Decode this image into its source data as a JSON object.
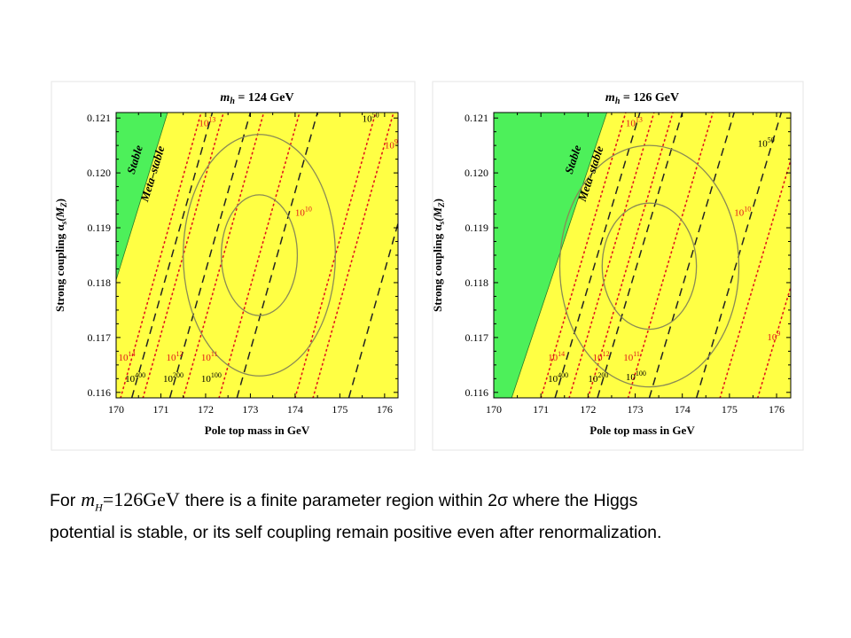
{
  "caption": {
    "prefix": "For",
    "math_symbol": "m",
    "math_subscript": "H",
    "math_value": "=126GeV",
    "line1_rest": "there is a finite parameter region within 2σ where the Higgs",
    "line2": "potential is stable, or its self coupling remain positive even after renormalization."
  },
  "colors": {
    "stable": "#4df05a",
    "metastable": "#ffff44",
    "contour_black": "#222222",
    "contour_red": "#e0161c",
    "ellipse": "#8a8a55"
  },
  "chart_data": [
    {
      "type": "contour",
      "title": "m_h = 124 GeV",
      "title_text": {
        "prefix": "m",
        "sub": "h",
        "rest": " = 124 GeV"
      },
      "xlabel": "Pole top mass in GeV",
      "ylabel": "Strong coupling α_s(M_Z)",
      "ylabel_text": {
        "prefix": "Strong coupling α",
        "sub": "s",
        "rest": "(M",
        "sub2": "Z",
        "end": ")"
      },
      "xlim": [
        170,
        176.3
      ],
      "ylim": [
        0.1159,
        0.1211
      ],
      "xticks": [
        "170",
        "171",
        "172",
        "173",
        "174",
        "175",
        "176"
      ],
      "yticks": [
        "0.116",
        "0.117",
        "0.118",
        "0.119",
        "0.120",
        "0.121"
      ],
      "regions": [
        {
          "name": "Stable",
          "label": "Stable",
          "boundary": [
            [
              170.02,
              0.1181
            ],
            [
              171.15,
              0.1211
            ]
          ]
        },
        {
          "name": "Meta-stable",
          "label": "Meta–stable"
        }
      ],
      "contours_black": [
        {
          "label": "10400",
          "base": "10",
          "exp": "400",
          "x_bottom": 170.35,
          "x_top": 172.15
        },
        {
          "label": "10200",
          "base": "10",
          "exp": "200",
          "x_bottom": 171.2,
          "x_top": 173.0
        },
        {
          "label": "10100",
          "base": "10",
          "exp": "100",
          "x_bottom": 172.7,
          "x_top": 174.5
        },
        {
          "label": "1050",
          "base": "10",
          "exp": "50",
          "x_bottom": 175.2,
          "x_top": 177.0
        }
      ],
      "contours_red": [
        {
          "label": "1014",
          "base": "10",
          "exp": "14",
          "x_bottom": 170.1,
          "x_top": 171.9
        },
        {
          "label": "1012",
          "base": "10",
          "exp": "12",
          "x_bottom": 171.5,
          "x_top": 173.3
        },
        {
          "label": "1011",
          "base": "10",
          "exp": "11",
          "x_bottom": 172.3,
          "x_top": 174.1
        },
        {
          "label": "1013",
          "base": "10",
          "exp": "13",
          "x_bottom": 170.6,
          "x_top": 172.4
        },
        {
          "label": "1010",
          "base": "10",
          "exp": "10",
          "x_bottom": 174.0,
          "x_top": 175.8
        },
        {
          "label": "109",
          "base": "10",
          "exp": "9",
          "x_bottom": 174.4,
          "x_top": 176.2
        }
      ],
      "curve_labels": [
        {
          "exp": "14",
          "x": 170.05,
          "y": 0.11658,
          "color": "red"
        },
        {
          "exp": "12",
          "x": 171.12,
          "y": 0.11658,
          "color": "red"
        },
        {
          "exp": "11",
          "x": 171.9,
          "y": 0.11658,
          "color": "red"
        },
        {
          "exp": "400",
          "x": 170.2,
          "y": 0.11619,
          "color": "black"
        },
        {
          "exp": "200",
          "x": 171.05,
          "y": 0.11619,
          "color": "black"
        },
        {
          "exp": "100",
          "x": 171.9,
          "y": 0.11619,
          "color": "black"
        },
        {
          "exp": "13",
          "x": 171.85,
          "y": 0.12085,
          "color": "red"
        },
        {
          "exp": "10",
          "x": 174.0,
          "y": 0.11922,
          "color": "red"
        },
        {
          "exp": "50",
          "x": 175.5,
          "y": 0.12093,
          "color": "black"
        },
        {
          "exp": "9",
          "x": 176.0,
          "y": 0.12045,
          "color": "red"
        }
      ],
      "ellipses": [
        {
          "sigma": 1,
          "cx": 173.2,
          "cy": 0.1185,
          "rx": 0.85,
          "ry": 0.0011
        },
        {
          "sigma": 2,
          "cx": 173.2,
          "cy": 0.1185,
          "rx": 1.7,
          "ry": 0.0022
        }
      ],
      "grid": false
    },
    {
      "type": "contour",
      "title": "m_h = 126 GeV",
      "title_text": {
        "prefix": "m",
        "sub": "h",
        "rest": " = 126 GeV"
      },
      "xlabel": "Pole top mass in GeV",
      "ylabel": "Strong coupling α_s(M_Z)",
      "ylabel_text": {
        "prefix": "Strong coupling α",
        "sub": "s",
        "rest": "(M",
        "sub2": "Z",
        "end": ")"
      },
      "xlim": [
        170,
        176.3
      ],
      "ylim": [
        0.1159,
        0.1211
      ],
      "xticks": [
        "170",
        "171",
        "172",
        "173",
        "174",
        "175",
        "176"
      ],
      "yticks": [
        "0.116",
        "0.117",
        "0.118",
        "0.119",
        "0.120",
        "0.121"
      ],
      "regions": [
        {
          "name": "Stable",
          "label": "Stable",
          "boundary": [
            [
              170.38,
              0.1159
            ],
            [
              172.4,
              0.1211
            ]
          ]
        },
        {
          "name": "Meta-stable",
          "label": "Meta–stable"
        }
      ],
      "contours_black": [
        {
          "label": "10400",
          "base": "10",
          "exp": "400",
          "x_bottom": 171.3,
          "x_top": 173.1
        },
        {
          "label": "10200",
          "base": "10",
          "exp": "200",
          "x_bottom": 172.2,
          "x_top": 174.0
        },
        {
          "label": "10100",
          "base": "10",
          "exp": "100",
          "x_bottom": 173.3,
          "x_top": 175.1
        },
        {
          "label": "1050",
          "base": "10",
          "exp": "50",
          "x_bottom": 174.3,
          "x_top": 176.1
        }
      ],
      "contours_red": [
        {
          "label": "1014",
          "base": "10",
          "exp": "14",
          "x_bottom": 171.0,
          "x_top": 172.8
        },
        {
          "label": "1012",
          "base": "10",
          "exp": "12",
          "x_bottom": 172.0,
          "x_top": 173.8
        },
        {
          "label": "1011",
          "base": "10",
          "exp": "11",
          "x_bottom": 172.85,
          "x_top": 174.65
        },
        {
          "label": "1013",
          "base": "10",
          "exp": "13",
          "x_bottom": 171.6,
          "x_top": 173.4
        },
        {
          "label": "1010",
          "base": "10",
          "exp": "10",
          "x_bottom": 174.8,
          "x_top": 176.6
        },
        {
          "label": "109",
          "base": "10",
          "exp": "9",
          "x_bottom": 175.6,
          "x_top": 177.4
        }
      ],
      "curve_labels": [
        {
          "exp": "14",
          "x": 171.15,
          "y": 0.11658,
          "color": "red"
        },
        {
          "exp": "12",
          "x": 172.1,
          "y": 0.11658,
          "color": "red"
        },
        {
          "exp": "11",
          "x": 172.75,
          "y": 0.11658,
          "color": "red"
        },
        {
          "exp": "400",
          "x": 171.15,
          "y": 0.11619,
          "color": "black"
        },
        {
          "exp": "200",
          "x": 172.0,
          "y": 0.11619,
          "color": "black"
        },
        {
          "exp": "100",
          "x": 172.8,
          "y": 0.11622,
          "color": "black"
        },
        {
          "exp": "13",
          "x": 172.8,
          "y": 0.12085,
          "color": "red"
        },
        {
          "exp": "10",
          "x": 175.1,
          "y": 0.11922,
          "color": "red"
        },
        {
          "exp": "50",
          "x": 175.6,
          "y": 0.12048,
          "color": "black"
        },
        {
          "exp": "9",
          "x": 175.8,
          "y": 0.11695,
          "color": "red"
        }
      ],
      "ellipses": [
        {
          "sigma": 1,
          "cx": 173.3,
          "cy": 0.1183,
          "rx": 1.0,
          "ry": 0.00115
        },
        {
          "sigma": 2,
          "cx": 173.3,
          "cy": 0.1183,
          "rx": 1.9,
          "ry": 0.0022
        }
      ],
      "grid": false
    }
  ]
}
